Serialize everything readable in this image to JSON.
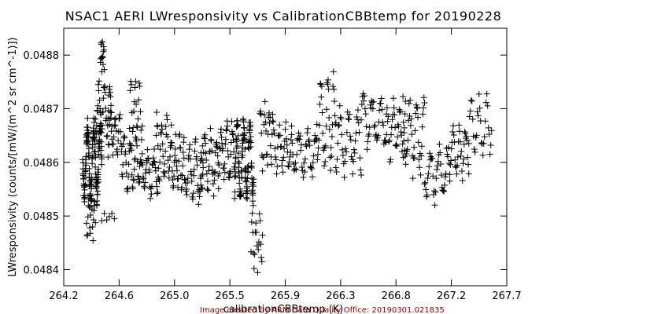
{
  "chart_data": {
    "type": "scatter",
    "title": "NSAC1 AERI LWresponsivity vs CalibrationCBBtemp for 20190228",
    "xlabel": "calibrationCBBtemp (K)",
    "ylabel": "LWresponsivity (counts/[mW/(m^2 sr cm^-1)])",
    "xlim": [
      264.2,
      267.7
    ],
    "ylim": [
      0.04837,
      0.04885
    ],
    "xticks": [
      "264.2",
      "264.6",
      "265.0",
      "265.5",
      "265.9",
      "266.3",
      "266.8",
      "267.2",
      "267.7"
    ],
    "yticks": [
      "0.0484",
      "0.0485",
      "0.0486",
      "0.0487",
      "0.0488"
    ],
    "yticks_values": [
      0.0484,
      0.0485,
      0.0486,
      0.0487,
      0.0488
    ],
    "marker": "plus",
    "grid": false,
    "segments": [
      {
        "x0": 264.35,
        "x1": 264.5,
        "yc": 0.0486,
        "amp": 8.5e-05,
        "n": 140
      },
      {
        "x0": 264.38,
        "x1": 264.45,
        "yc": 0.0485,
        "amp": 5e-05,
        "n": 20
      },
      {
        "x0": 264.5,
        "x1": 264.6,
        "yc": 0.0485,
        "amp": 1e-05,
        "n": 6
      },
      {
        "x0": 264.45,
        "x1": 264.58,
        "yc": 0.0487,
        "amp": 5.5e-05,
        "n": 40
      },
      {
        "x0": 264.49,
        "x1": 264.52,
        "yc": 0.0488,
        "amp": 4e-05,
        "n": 14
      },
      {
        "x0": 264.55,
        "x1": 264.66,
        "yc": 0.04865,
        "amp": 4.5e-05,
        "n": 30
      },
      {
        "x0": 264.66,
        "x1": 264.8,
        "yc": 0.0486,
        "amp": 6e-05,
        "n": 40
      },
      {
        "x0": 264.72,
        "x1": 264.82,
        "yc": 0.0487,
        "amp": 6e-05,
        "n": 22
      },
      {
        "x0": 264.8,
        "x1": 264.95,
        "yc": 0.04858,
        "amp": 5e-05,
        "n": 40
      },
      {
        "x0": 264.93,
        "x1": 265.05,
        "yc": 0.04863,
        "amp": 7e-05,
        "n": 34
      },
      {
        "x0": 265.05,
        "x1": 265.15,
        "yc": 0.0486,
        "amp": 6e-05,
        "n": 30
      },
      {
        "x0": 265.15,
        "x1": 265.3,
        "yc": 0.04858,
        "amp": 6.5e-05,
        "n": 40
      },
      {
        "x0": 265.28,
        "x1": 265.42,
        "yc": 0.0486,
        "amp": 6.5e-05,
        "n": 40
      },
      {
        "x0": 265.42,
        "x1": 265.55,
        "yc": 0.04862,
        "amp": 7e-05,
        "n": 40
      },
      {
        "x0": 265.55,
        "x1": 265.7,
        "yc": 0.0486,
        "amp": 8.5e-05,
        "n": 110
      },
      {
        "x0": 265.68,
        "x1": 265.77,
        "yc": 0.04845,
        "amp": 6e-05,
        "n": 20
      },
      {
        "x0": 265.75,
        "x1": 265.85,
        "yc": 0.04865,
        "amp": 8e-05,
        "n": 26
      },
      {
        "x0": 265.85,
        "x1": 266.0,
        "yc": 0.04863,
        "amp": 5.5e-05,
        "n": 34
      },
      {
        "x0": 266.0,
        "x1": 266.2,
        "yc": 0.04862,
        "amp": 5e-05,
        "n": 40
      },
      {
        "x0": 266.2,
        "x1": 266.35,
        "yc": 0.04868,
        "amp": 0.0001,
        "n": 40
      },
      {
        "x0": 266.35,
        "x1": 266.55,
        "yc": 0.04864,
        "amp": 7e-05,
        "n": 40
      },
      {
        "x0": 266.55,
        "x1": 266.75,
        "yc": 0.04868,
        "amp": 6.5e-05,
        "n": 40
      },
      {
        "x0": 266.75,
        "x1": 266.9,
        "yc": 0.04866,
        "amp": 6e-05,
        "n": 34
      },
      {
        "x0": 266.88,
        "x1": 267.05,
        "yc": 0.04865,
        "amp": 8.5e-05,
        "n": 40
      },
      {
        "x0": 267.05,
        "x1": 267.25,
        "yc": 0.04858,
        "amp": 6e-05,
        "n": 40
      },
      {
        "x0": 267.25,
        "x1": 267.4,
        "yc": 0.04862,
        "amp": 5.5e-05,
        "n": 34
      },
      {
        "x0": 267.4,
        "x1": 267.58,
        "yc": 0.04867,
        "amp": 6e-05,
        "n": 30
      }
    ]
  },
  "footer": {
    "text": "Image created by ARM Data Quality Office: 20190301.021835",
    "color": "#8b0000"
  }
}
